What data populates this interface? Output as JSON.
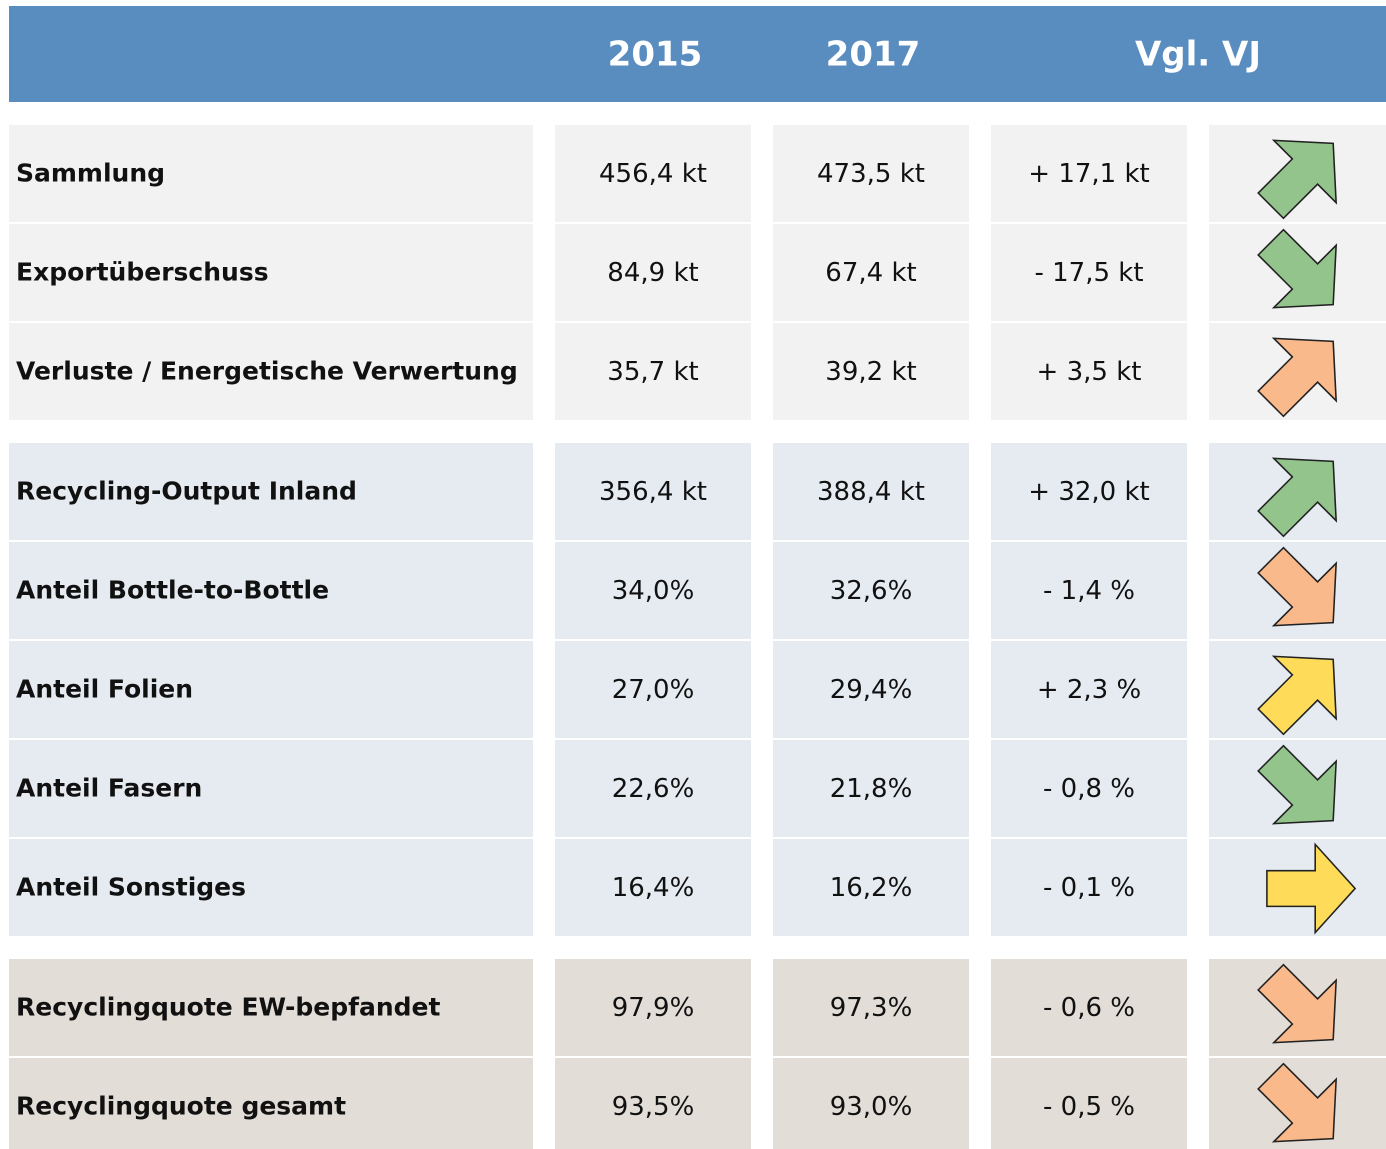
{
  "table": {
    "header": [
      "2015",
      "2017",
      "Vgl. VJ"
    ],
    "header_color": "#5a8dbf",
    "groups": [
      {
        "background": "#f2f2f2",
        "rows": [
          {
            "label": "Sammlung",
            "cells": [
              "456,4 kt",
              "473,5 kt",
              "+ 17,1 kt"
            ],
            "trend": "up",
            "color": "#93c48b"
          },
          {
            "label": "Exportüberschuss",
            "cells": [
              "84,9 kt",
              "67,4 kt",
              "- 17,5 kt"
            ],
            "trend": "down",
            "color": "#93c48b"
          },
          {
            "label": "Verluste / Energetische Verwertung",
            "cells": [
              "35,7 kt",
              "39,2 kt",
              "+ 3,5 kt"
            ],
            "trend": "up",
            "color": "#f9b98a"
          }
        ]
      },
      {
        "background": "#e6ebf2",
        "rows": [
          {
            "label": "Recycling-Output Inland",
            "cells": [
              "356,4 kt",
              "388,4 kt",
              "+ 32,0 kt"
            ],
            "trend": "up",
            "color": "#93c48b"
          },
          {
            "label": "Anteil Bottle-to-Bottle",
            "cells": [
              "34,0%",
              "32,6%",
              "- 1,4 %"
            ],
            "trend": "down",
            "color": "#f9b98a"
          },
          {
            "label": "Anteil Folien",
            "cells": [
              "27,0%",
              "29,4%",
              "+ 2,3 %"
            ],
            "trend": "up",
            "color": "#fedc5a"
          },
          {
            "label": "Anteil Fasern",
            "cells": [
              "22,6%",
              "21,8%",
              "- 0,8 %"
            ],
            "trend": "down",
            "color": "#93c48b"
          },
          {
            "label": "Anteil Sonstiges",
            "cells": [
              "16,4%",
              "16,2%",
              "- 0,1 %"
            ],
            "trend": "right",
            "color": "#fedc5a"
          }
        ]
      },
      {
        "background": "#e3ddd7",
        "rows": [
          {
            "label": "Recyclingquote EW-bepfandet",
            "cells": [
              "97,9%",
              "97,3%",
              "- 0,6 %"
            ],
            "trend": "down",
            "color": "#f9b98a"
          },
          {
            "label": "Recyclingquote gesamt",
            "cells": [
              "93,5%",
              "93,0%",
              "- 0,5 %"
            ],
            "trend": "down",
            "color": "#f9b98a"
          }
        ]
      }
    ]
  }
}
